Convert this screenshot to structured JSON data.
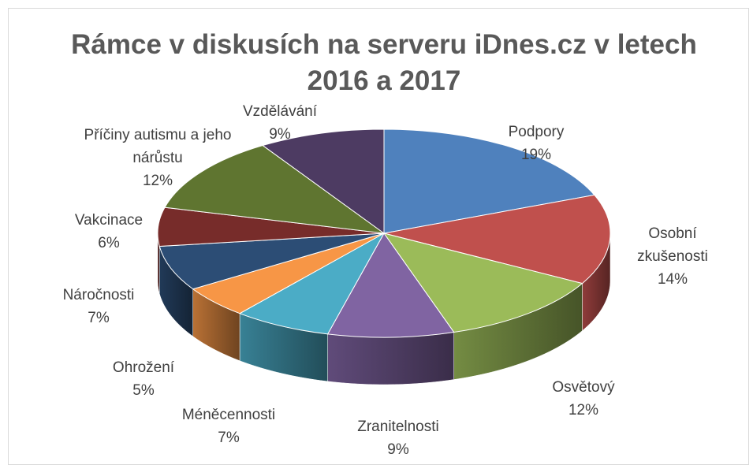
{
  "chart_data": {
    "type": "pie3d",
    "title": "Rámce v diskusích na serveru iDnes.cz v letech 2016 a 2017",
    "categories": [
      "Podpory",
      "Osobní zkušenosti",
      "Osvětový",
      "Zranitelnosti",
      "Méněcennosti",
      "Ohrožení",
      "Náročnosti",
      "Vakcinace",
      "Příčiny autismu a jeho nárůstu",
      "Vzdělávání"
    ],
    "values": [
      19,
      14,
      12,
      9,
      7,
      5,
      7,
      6,
      12,
      9
    ],
    "value_labels": [
      "19%",
      "14%",
      "12%",
      "9%",
      "7%",
      "5%",
      "7%",
      "6%",
      "12%",
      "9%"
    ],
    "colors": [
      "#4f81bd",
      "#c0504d",
      "#9bbb59",
      "#8064a2",
      "#4bacc6",
      "#f79646",
      "#2c4d75",
      "#772c2a",
      "#5f7530",
      "#4d3b62"
    ]
  }
}
